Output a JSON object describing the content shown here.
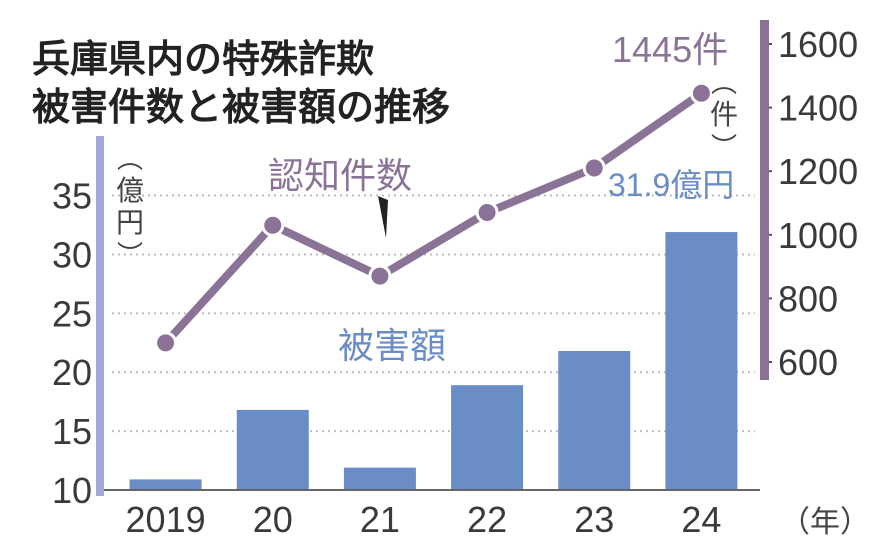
{
  "chart_data": {
    "type": "bar+line",
    "title_lines": [
      "兵庫県内の特殊詐欺",
      "被害件数と被害額の推移"
    ],
    "categories": [
      "2019",
      "20",
      "21",
      "22",
      "23",
      "24"
    ],
    "x_unit": "（年）",
    "left_axis": {
      "unit": "億円",
      "ticks": [
        "35",
        "30",
        "25",
        "20",
        "15",
        "10"
      ],
      "ylim": [
        10,
        37
      ]
    },
    "right_axis": {
      "unit": "件",
      "ticks": [
        "1600",
        "1400",
        "1200",
        "1000",
        "800",
        "600"
      ],
      "ylim": [
        560,
        1640
      ]
    },
    "series": [
      {
        "name": "被害額",
        "type": "bar",
        "axis": "left",
        "values": [
          10.9,
          16.8,
          11.9,
          18.9,
          21.8,
          31.9
        ]
      },
      {
        "name": "認知件数",
        "type": "line",
        "axis": "right",
        "values": [
          660,
          1030,
          870,
          1070,
          1210,
          1445
        ]
      }
    ],
    "annotations": {
      "last_bar": "31.9億円",
      "last_point": "1445件"
    },
    "colors": {
      "bar": "#6a8cc7",
      "line": "#8a7397",
      "left_axis": "#a3a9d6",
      "right_axis": "#8a7397",
      "grid": "#bcbcbc"
    },
    "grid": true
  }
}
